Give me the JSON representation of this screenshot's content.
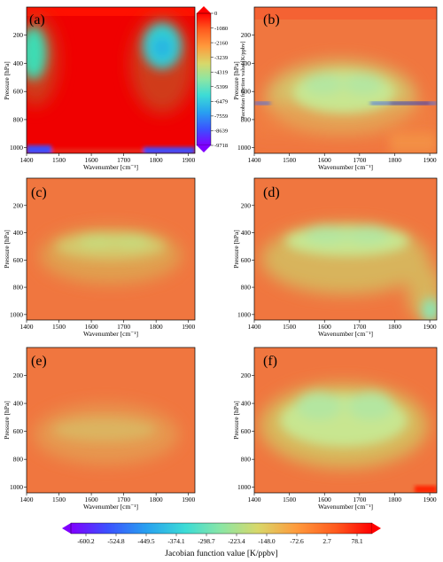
{
  "figure": {
    "colors": {
      "background": "#f0763f",
      "max_value": "#ff0000",
      "sensitive_zone": "#c8e690",
      "strong_negative": "#2a50ff"
    }
  },
  "chart_data": [
    {
      "panel_label": "(a)",
      "type": "heatmap",
      "xlabel": "Wavenumber [cm⁻¹]",
      "ylabel": "Pressure [hPa]",
      "xlim": [
        1400,
        1920
      ],
      "ylim": [
        1040,
        0
      ],
      "x_ticks": [
        "1400",
        "1500",
        "1600",
        "1700",
        "1800",
        "1900"
      ],
      "y_ticks": [
        "200",
        "400",
        "600",
        "800",
        "1000"
      ],
      "colorbar": {
        "label": "Jacobian function value [K/ppbv]",
        "ticks": [
          "0",
          "-1080",
          "-2160",
          "-3239",
          "-4319",
          "-5399",
          "-6479",
          "-7559",
          "-8639",
          "-9718"
        ]
      },
      "description": "Near-zero (red) almost everywhere; moderate negative values (cyan/green) in the 150-500 hPa layer at 1400-1490 and 1760-1880 cm-1; strongly negative band near 1020-1040 hPa."
    },
    {
      "panel_label": "(b)",
      "type": "heatmap",
      "xlabel": "Wavenumber [cm⁻¹]",
      "ylabel": "Pressure [hPa]",
      "xlim": [
        1400,
        1920
      ],
      "ylim": [
        1040,
        0
      ],
      "x_ticks": [
        "1400",
        "1500",
        "1600",
        "1700",
        "1800",
        "1900"
      ],
      "y_ticks": [
        "200",
        "400",
        "600",
        "800",
        "1000"
      ],
      "description": "Arch-shaped negative region peaking around 450-650 hPa near 1550-1700 cm-1; sharp strong negative line at ~680 hPa near 1400 and 1800-1920 cm-1."
    },
    {
      "panel_label": "(c)",
      "type": "heatmap",
      "xlabel": "Wavenumber [cm⁻¹]",
      "ylabel": "Pressure [hPa]",
      "xlim": [
        1400,
        1920
      ],
      "ylim": [
        1040,
        0
      ],
      "x_ticks": [
        "1400",
        "1500",
        "1600",
        "1700",
        "1800",
        "1900"
      ],
      "y_ticks": [
        "200",
        "400",
        "600",
        "800",
        "1000"
      ],
      "description": "Weak negative band centered near 550-600 hPa between 1450 and 1760 cm-1."
    },
    {
      "panel_label": "(d)",
      "type": "heatmap",
      "xlabel": "Wavenumber [cm⁻¹]",
      "ylabel": "Pressure [hPa]",
      "xlim": [
        1400,
        1920
      ],
      "ylim": [
        1040,
        0
      ],
      "x_ticks": [
        "1400",
        "1500",
        "1600",
        "1700",
        "1800",
        "1900"
      ],
      "y_ticks": [
        "200",
        "400",
        "600",
        "800",
        "1000"
      ],
      "description": "Negative arch centered near 480-560 hPa spanning 1450-1900 cm-1, extending toward the surface at 1860-1920 cm-1."
    },
    {
      "panel_label": "(e)",
      "type": "heatmap",
      "xlabel": "Wavenumber [cm⁻¹]",
      "ylabel": "Pressure [hPa]",
      "xlim": [
        1400,
        1920
      ],
      "ylim": [
        1040,
        0
      ],
      "x_ticks": [
        "1400",
        "1500",
        "1600",
        "1700",
        "1800",
        "1900"
      ],
      "y_ticks": [
        "200",
        "400",
        "600",
        "800",
        "1000"
      ],
      "description": "Faint negative band near 550-650 hPa between 1450 and 1750 cm-1."
    },
    {
      "panel_label": "(f)",
      "type": "heatmap",
      "xlabel": "Wavenumber [cm⁻¹]",
      "ylabel": "Pressure [hPa]",
      "xlim": [
        1400,
        1920
      ],
      "ylim": [
        1040,
        0
      ],
      "x_ticks": [
        "1400",
        "1500",
        "1600",
        "1700",
        "1800",
        "1900"
      ],
      "y_ticks": [
        "200",
        "400",
        "600",
        "800",
        "1000"
      ],
      "description": "Broad negative arch centered near 450-700 hPa from 1450 to 1800 cm-1; small positive patch near 1000 hPa at 1900 cm-1."
    }
  ],
  "shared_colorbar": {
    "label": "Jacobian function value [K/ppbv]",
    "ticks": [
      "-600.2",
      "-524.8",
      "-449.5",
      "-374.1",
      "-298.7",
      "-223.4",
      "-148.0",
      "-72.6",
      "2.7",
      "78.1"
    ],
    "extend": "both"
  }
}
